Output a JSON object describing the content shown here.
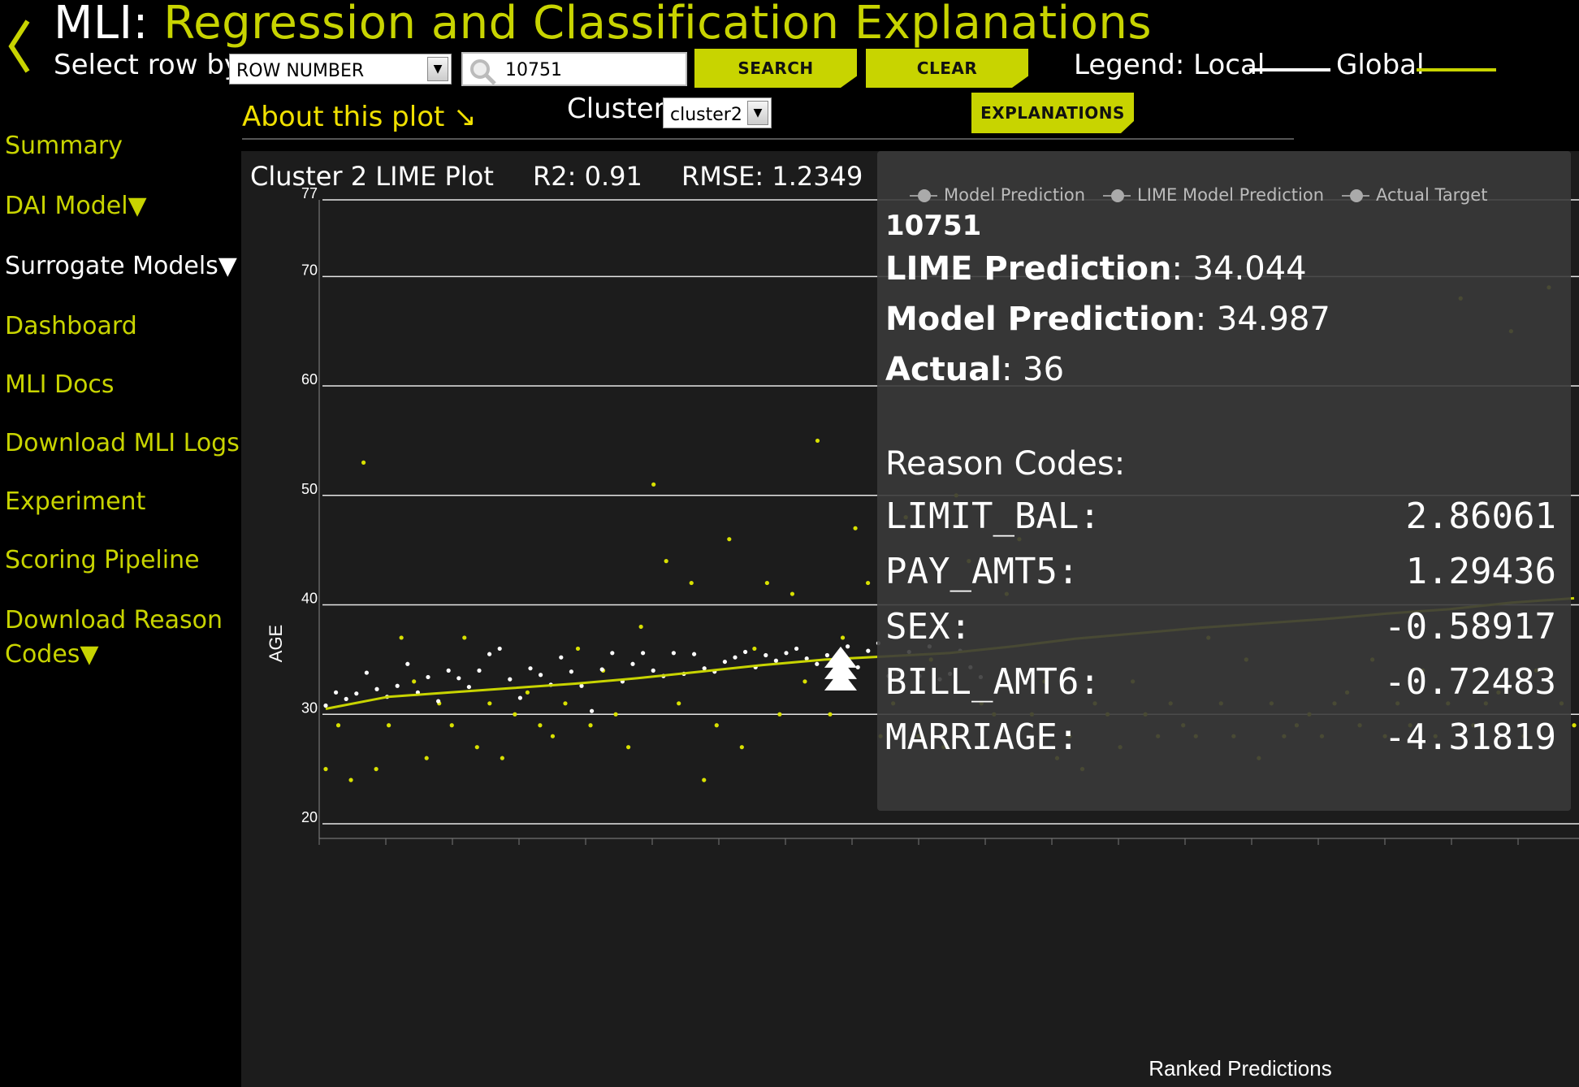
{
  "header": {
    "title_prefix": "MLI:",
    "title_main": "Regression and Classification Explanations",
    "select_row_label": "Select row by:",
    "row_select_value": "ROW NUMBER",
    "search_value": "10751",
    "search_button": "SEARCH",
    "clear_button": "CLEAR",
    "legend_label": "Legend: Local",
    "legend_global": "Global"
  },
  "subheader": {
    "about_link": "About this plot ↘",
    "cluster_label": "Cluster:",
    "cluster_value": "cluster2",
    "explanations_button": "EXPLANATIONS"
  },
  "sidebar": {
    "items": [
      {
        "label": "Summary"
      },
      {
        "label": "DAI Model▼"
      },
      {
        "label": "Surrogate Models▼"
      },
      {
        "label": "Dashboard"
      },
      {
        "label": "MLI Docs"
      },
      {
        "label": "Download MLI Logs"
      },
      {
        "label": "Experiment"
      },
      {
        "label": "Scoring Pipeline"
      },
      {
        "label": "Download Reason"
      },
      {
        "label": "Codes▼"
      }
    ]
  },
  "plot": {
    "title": "Cluster 2 LIME Plot",
    "r2": "R2: 0.91",
    "rmse": "RMSE: 1.2349"
  },
  "chart_data": {
    "type": "scatter",
    "ylabel": "AGE",
    "xlabel": "Ranked Predictions",
    "ylim": [
      18,
      78
    ],
    "y_ticks": [
      "77",
      "70",
      "60",
      "50",
      "40",
      "30",
      "20"
    ],
    "series": [
      {
        "name": "Model Prediction",
        "kind": "line"
      },
      {
        "name": "LIME Model Prediction",
        "kind": "points"
      },
      {
        "name": "Actual Target",
        "kind": "points"
      }
    ],
    "global_line": [
      [
        0,
        30.5
      ],
      [
        5,
        31.6
      ],
      [
        10,
        32.0
      ],
      [
        15,
        32.4
      ],
      [
        20,
        32.8
      ],
      [
        25,
        33.3
      ],
      [
        30,
        33.9
      ],
      [
        35,
        34.5
      ],
      [
        40,
        35.0
      ],
      [
        45,
        35.3
      ],
      [
        50,
        35.6
      ],
      [
        55,
        36.2
      ],
      [
        60,
        36.9
      ],
      [
        65,
        37.4
      ],
      [
        70,
        37.9
      ],
      [
        75,
        38.3
      ],
      [
        80,
        38.7
      ],
      [
        85,
        39.2
      ],
      [
        90,
        39.6
      ],
      [
        95,
        40.2
      ],
      [
        100,
        40.6
      ]
    ],
    "lime_points": [
      [
        0,
        30.8
      ],
      [
        1,
        32
      ],
      [
        2,
        31.4
      ],
      [
        3,
        31.9
      ],
      [
        4,
        33.8
      ],
      [
        5,
        32.3
      ],
      [
        6,
        31.6
      ],
      [
        7,
        32.6
      ],
      [
        8,
        34.6
      ],
      [
        9,
        32
      ],
      [
        10,
        33.4
      ],
      [
        11,
        31.2
      ],
      [
        12,
        34
      ],
      [
        13,
        33.3
      ],
      [
        14,
        32.5
      ],
      [
        15,
        34
      ],
      [
        16,
        35.5
      ],
      [
        17,
        36
      ],
      [
        18,
        33.2
      ],
      [
        19,
        31.5
      ],
      [
        20,
        34.2
      ],
      [
        21,
        33.6
      ],
      [
        22,
        32.7
      ],
      [
        23,
        35.2
      ],
      [
        24,
        33.9
      ],
      [
        25,
        32.6
      ],
      [
        26,
        30.3
      ],
      [
        27,
        34.1
      ],
      [
        28,
        35.6
      ],
      [
        29,
        33
      ],
      [
        30,
        34.6
      ],
      [
        31,
        35.6
      ],
      [
        32,
        34
      ],
      [
        33,
        33.5
      ],
      [
        34,
        35.6
      ],
      [
        35,
        33.7
      ],
      [
        36,
        35.5
      ],
      [
        37,
        34.2
      ],
      [
        38,
        33.9
      ],
      [
        39,
        34.8
      ],
      [
        40,
        35.2
      ],
      [
        41,
        35.7
      ],
      [
        42,
        34.3
      ],
      [
        43,
        35.4
      ],
      [
        44,
        34.9
      ],
      [
        45,
        35.6
      ],
      [
        46,
        36
      ],
      [
        47,
        35.1
      ],
      [
        48,
        34.6
      ],
      [
        49,
        35.4
      ],
      [
        50,
        34.9
      ],
      [
        51,
        36.2
      ],
      [
        52,
        34.3
      ],
      [
        53,
        35.8
      ],
      [
        54,
        36.5
      ],
      [
        55,
        33.5
      ],
      [
        56,
        34
      ],
      [
        57,
        35.7
      ],
      [
        58,
        33.5
      ],
      [
        59,
        36.2
      ],
      [
        60,
        33.2
      ],
      [
        61,
        33.7
      ],
      [
        62,
        35.8
      ],
      [
        63,
        34.3
      ],
      [
        64,
        33.4
      ]
    ],
    "actual_points": [
      [
        0,
        25
      ],
      [
        1,
        29
      ],
      [
        2,
        24
      ],
      [
        3,
        53
      ],
      [
        4,
        25
      ],
      [
        5,
        29
      ],
      [
        6,
        37
      ],
      [
        7,
        33
      ],
      [
        8,
        26
      ],
      [
        9,
        31
      ],
      [
        10,
        29
      ],
      [
        11,
        37
      ],
      [
        12,
        27
      ],
      [
        13,
        31
      ],
      [
        14,
        26
      ],
      [
        15,
        30
      ],
      [
        16,
        32
      ],
      [
        17,
        29
      ],
      [
        18,
        28
      ],
      [
        19,
        31
      ],
      [
        20,
        36
      ],
      [
        21,
        29
      ],
      [
        22,
        34
      ],
      [
        23,
        30
      ],
      [
        24,
        27
      ],
      [
        25,
        38
      ],
      [
        26,
        51
      ],
      [
        27,
        44
      ],
      [
        28,
        31
      ],
      [
        29,
        42
      ],
      [
        30,
        24
      ],
      [
        31,
        29
      ],
      [
        32,
        46
      ],
      [
        33,
        27
      ],
      [
        34,
        36
      ],
      [
        35,
        42
      ],
      [
        36,
        30
      ],
      [
        37,
        41
      ],
      [
        38,
        33
      ],
      [
        39,
        55
      ],
      [
        40,
        30
      ],
      [
        41,
        37
      ],
      [
        42,
        47
      ],
      [
        43,
        42
      ],
      [
        44,
        28
      ],
      [
        45,
        31
      ],
      [
        46,
        48
      ],
      [
        47,
        28
      ],
      [
        48,
        35
      ],
      [
        49,
        27
      ],
      [
        50,
        50
      ],
      [
        51,
        44
      ],
      [
        52,
        31
      ],
      [
        53,
        30
      ],
      [
        54,
        41
      ],
      [
        55,
        46
      ],
      [
        56,
        30
      ],
      [
        57,
        33
      ],
      [
        58,
        26
      ],
      [
        59,
        28
      ],
      [
        60,
        25
      ],
      [
        61,
        31
      ],
      [
        62,
        30
      ],
      [
        63,
        27
      ],
      [
        64,
        33
      ],
      [
        65,
        30
      ],
      [
        66,
        28
      ],
      [
        67,
        31
      ],
      [
        68,
        29
      ],
      [
        69,
        28
      ],
      [
        70,
        37
      ],
      [
        71,
        31
      ],
      [
        72,
        28
      ],
      [
        73,
        35
      ],
      [
        74,
        26
      ],
      [
        75,
        31
      ],
      [
        76,
        28
      ],
      [
        77,
        29
      ],
      [
        78,
        30
      ],
      [
        79,
        28
      ],
      [
        80,
        31
      ],
      [
        81,
        32
      ],
      [
        82,
        29
      ],
      [
        83,
        35
      ],
      [
        84,
        28
      ],
      [
        85,
        31
      ],
      [
        86,
        29
      ],
      [
        87,
        34
      ],
      [
        88,
        28
      ],
      [
        89,
        31
      ],
      [
        90,
        68
      ],
      [
        91,
        29
      ],
      [
        92,
        31
      ],
      [
        93,
        32
      ],
      [
        94,
        65
      ],
      [
        95,
        28
      ],
      [
        96,
        34
      ],
      [
        97,
        69
      ],
      [
        98,
        31
      ],
      [
        99,
        29
      ]
    ]
  },
  "tooltip": {
    "legend": [
      "Model Prediction",
      "LIME Model Prediction",
      "Actual Target"
    ],
    "row": "10751",
    "lime_label": "LIME Prediction",
    "lime_value": ": 34.044",
    "model_label": "Model Prediction",
    "model_value": ": 34.987",
    "actual_label": "Actual",
    "actual_value": ": 36",
    "reason_title": "Reason Codes:",
    "reason_codes": [
      {
        "name": "LIMIT_BAL:",
        "value": "2.86061"
      },
      {
        "name": "PAY_AMT5:",
        "value": "1.29436"
      },
      {
        "name": "SEX:",
        "value": "-0.58917"
      },
      {
        "name": "BILL_AMT6:",
        "value": "-0.72483"
      },
      {
        "name": "MARRIAGE:",
        "value": "-4.31819"
      }
    ]
  },
  "colors": {
    "accent": "#c8d400",
    "background": "#000000",
    "plot_bg": "#1c1c1c"
  }
}
